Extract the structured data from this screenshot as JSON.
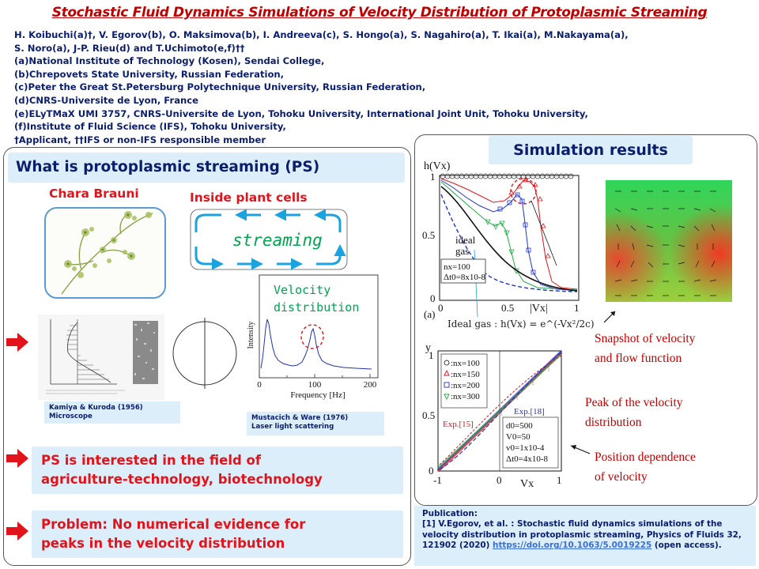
{
  "title": "Stochastic Fluid Dynamics Simulations of Velocity Distribution of Protoplasmic Streaming",
  "authors": {
    "lines": [
      "H. Koibuchi(a)†, V. Egorov(b), O. Maksimova(b), I. Andreeva(c), S. Hongo(a), S. Nagahiro(a), T. Ikai(a), M.Nakayama(a),",
      "S. Noro(a), J-P. Rieu(d) and T.Uchimoto(e,f)††",
      "(a)National Institute of Technology (Kosen), Sendai College,",
      "(b)Chrepovets State University, Russian Federation,",
      "(c)Peter the Great St.Petersburg Polytechnique University, Russian Federation,",
      "(d)CNRS-Universite de Lyon, France",
      "(e)ELyTMaX UMI 3757, CNRS-Universite de Lyon, Tohoku University, International Joint Unit, Tohoku University,",
      "(f)Institute of Fluid Science (IFS), Tohoku University,",
      "†Applicant, ††IFS or non-IFS responsible member"
    ]
  },
  "left": {
    "heading": "What is protoplasmic streaming (PS)",
    "chara_title": "Chara Brauni",
    "plant_title": "Inside plant cells",
    "streaming_label": "streaming",
    "velocity_label": [
      "Velocity",
      "distribution"
    ],
    "spectrum": {
      "ylabel": "Intensity",
      "xlabel": "Frequency [Hz]",
      "xticks": [
        "0",
        "100",
        "200"
      ]
    },
    "kamiya_caption": [
      "Kamiya & Kuroda (1956)",
      "Microscope"
    ],
    "mustacich_caption": [
      "Mustacich & Ware (1976)",
      "Laser light scattering"
    ],
    "interest": [
      "PS is interested in the field of",
      "agriculture-technology,  biotechnology"
    ],
    "problem": [
      "Problem:  No numerical evidence for",
      "peaks in the velocity distribution"
    ]
  },
  "right": {
    "heading": "Simulation results",
    "plot_a": {
      "ylabel": "h(Vx)",
      "xlabel": "|Vx|",
      "tag": "(a)",
      "yticks": [
        "1",
        "0.5",
        "0"
      ],
      "xticks": [
        "0",
        "0.5",
        "1"
      ],
      "ideal_label": [
        "ideal",
        "gas"
      ],
      "params": [
        "nx=100",
        "Δt0=8x10-8"
      ]
    },
    "ideal_formula": "Ideal gas : h(Vx) = e^(-Vx²/2c)",
    "plot_b": {
      "ylabel": "y",
      "xlabel": "Vx",
      "yticks": [
        "1",
        "0.5",
        "0"
      ],
      "xticks": [
        "-1",
        "0",
        "1"
      ],
      "legend": [
        ":nx=100",
        ":nx=150",
        ":nx=200",
        ":nx=300"
      ],
      "exp15": "Exp.[15]",
      "exp18": "Exp.[18]",
      "params": [
        "d0=500",
        "V0=50",
        "v0=1x10-4",
        "Δt0=4x10-8"
      ]
    },
    "snapshot_label": [
      "Snapshot  of velocity",
      "and flow function"
    ],
    "peak_label": [
      "Peak of the velocity",
      "distribution"
    ],
    "position_label": [
      "Position dependence",
      "of velocity"
    ]
  },
  "publication": {
    "heading": "Publication:",
    "text": "[1] V.Egorov, et al. : Stochastic fluid dynamics simulations of the velocity distribution in protoplasmic streaming, Physics of Fluids 32, 121902 (2020)",
    "link": "https://doi.org/10.1063/5.0019225",
    "suffix": "(open access)."
  },
  "colors": {
    "title_red": "#c00000",
    "navy": "#0b1e6e",
    "light_blue": "#dbeefa",
    "accent_red": "#e3131b",
    "streaming_green": "#00a550"
  },
  "icons": [
    "right-arrow-icon",
    "down-arrow-icon"
  ]
}
